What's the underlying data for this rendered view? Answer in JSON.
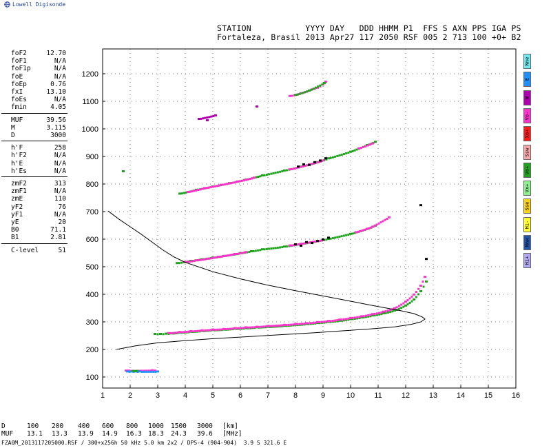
{
  "brand": {
    "name": "Lowell Digisonde",
    "logo_icon": "globe-icon"
  },
  "station": {
    "header_line": "STATION           YYYY DAY   DDD HHMM P1  FFS S AXN PPS IGA PS",
    "value_line": "Fortaleza, Brasil 2013 Apr27 117 2050 RSF 005 2 713 100 +0+ B2"
  },
  "param_groups": [
    [
      {
        "label": "foF2",
        "value": "12.70"
      },
      {
        "label": "foF1",
        "value": "N/A"
      },
      {
        "label": "foF1p",
        "value": "N/A"
      },
      {
        "label": "foE",
        "value": "N/A"
      },
      {
        "label": "foEp",
        "value": "0.76"
      },
      {
        "label": "fxI",
        "value": "13.10"
      },
      {
        "label": "foEs",
        "value": "N/A"
      },
      {
        "label": "fmin",
        "value": "4.05"
      }
    ],
    [
      {
        "label": "MUF",
        "value": "39.56"
      },
      {
        "label": "M",
        "value": "3.115"
      },
      {
        "label": "D",
        "value": "3000"
      }
    ],
    [
      {
        "label": "h'F",
        "value": "258"
      },
      {
        "label": "h'F2",
        "value": "N/A"
      },
      {
        "label": "h'E",
        "value": "N/A"
      },
      {
        "label": "h'Es",
        "value": "N/A"
      }
    ],
    [
      {
        "label": "zmF2",
        "value": "313"
      },
      {
        "label": "zmF1",
        "value": "N/A"
      },
      {
        "label": "zmE",
        "value": "110"
      },
      {
        "label": "yF2",
        "value": "76"
      },
      {
        "label": "yF1",
        "value": "N/A"
      },
      {
        "label": "yE",
        "value": "20"
      },
      {
        "label": "B0",
        "value": "71.1"
      },
      {
        "label": "B1",
        "value": "2.81"
      }
    ],
    [
      {
        "label": "C-level",
        "value": "51"
      }
    ]
  ],
  "legend": [
    {
      "label": "Nne",
      "color": "#6fe9f0"
    },
    {
      "label": "E",
      "color": "#1e90ff"
    },
    {
      "label": "W",
      "color": "#b000b0"
    },
    {
      "label": "Vo-",
      "color": "#ff33cc"
    },
    {
      "label": "Xo+",
      "color": "#ff1a1a"
    },
    {
      "label": "Ssw",
      "color": "#f7a8a8"
    },
    {
      "label": "Vo+",
      "color": "#1fa31f"
    },
    {
      "label": "Vx+",
      "color": "#8ff08f"
    },
    {
      "label": "Sse",
      "color": "#ffd21a"
    },
    {
      "label": "Hi-",
      "color": "#ffff33"
    },
    {
      "label": "Nnw",
      "color": "#2255aa"
    },
    {
      "label": "Hi+",
      "color": "#b0a8f0"
    }
  ],
  "chart_data": {
    "type": "scatter",
    "title": "",
    "xlabel": "",
    "ylabel": "",
    "xlim": [
      1,
      16
    ],
    "ylim": [
      60,
      1290
    ],
    "x_ticks": [
      1,
      2,
      3,
      4,
      5,
      6,
      7,
      8,
      9,
      10,
      11,
      12,
      13,
      14,
      15,
      16
    ],
    "y_ticks": [
      100,
      200,
      300,
      400,
      500,
      600,
      700,
      800,
      900,
      1000,
      1100,
      1200
    ],
    "grid": true,
    "traces": [
      {
        "name": "",
        "color": "#1fa31f",
        "points": [
          [
            2.9,
            255
          ],
          [
            3.1,
            255
          ],
          [
            3.3,
            256
          ],
          [
            3.5,
            257
          ],
          [
            3.8,
            260
          ],
          [
            4.2,
            263
          ],
          [
            4.6,
            266
          ],
          [
            5.0,
            269
          ],
          [
            5.4,
            271
          ],
          [
            5.8,
            274
          ],
          [
            6.2,
            276
          ],
          [
            6.6,
            279
          ],
          [
            7.0,
            281
          ],
          [
            7.6,
            285
          ],
          [
            8.0,
            288
          ],
          [
            8.4,
            291
          ],
          [
            8.8,
            295
          ],
          [
            9.2,
            299
          ],
          [
            9.6,
            303
          ],
          [
            10.0,
            309
          ],
          [
            10.4,
            315
          ],
          [
            10.8,
            322
          ],
          [
            11.2,
            330
          ],
          [
            11.6,
            340
          ],
          [
            12.0,
            358
          ],
          [
            12.3,
            380
          ],
          [
            12.55,
            410
          ],
          [
            12.75,
            445
          ]
        ]
      },
      {
        "name": "",
        "color": "#ff33cc",
        "points": [
          [
            3.4,
            258
          ],
          [
            3.8,
            262
          ],
          [
            4.2,
            265
          ],
          [
            4.6,
            268
          ],
          [
            5.0,
            271
          ],
          [
            5.4,
            273
          ],
          [
            5.8,
            276
          ],
          [
            6.2,
            279
          ],
          [
            6.6,
            281
          ],
          [
            7.0,
            284
          ],
          [
            7.6,
            288
          ],
          [
            8.0,
            291
          ],
          [
            8.4,
            294
          ],
          [
            8.8,
            298
          ],
          [
            9.2,
            302
          ],
          [
            9.6,
            307
          ],
          [
            10.0,
            313
          ],
          [
            10.4,
            319
          ],
          [
            10.8,
            327
          ],
          [
            11.2,
            336
          ],
          [
            11.6,
            348
          ],
          [
            12.0,
            372
          ],
          [
            12.3,
            398
          ],
          [
            12.55,
            430
          ],
          [
            12.7,
            462
          ]
        ]
      },
      {
        "name": "",
        "color": "#1fa31f",
        "points": [
          [
            3.7,
            512
          ],
          [
            4.2,
            520
          ],
          [
            4.6,
            526
          ],
          [
            5.0,
            532
          ],
          [
            5.4,
            538
          ],
          [
            6.0,
            548
          ],
          [
            6.4,
            555
          ],
          [
            6.8,
            562
          ],
          [
            7.6,
            572
          ],
          [
            8.2,
            582
          ],
          [
            8.8,
            592
          ],
          [
            9.2,
            600
          ],
          [
            10.0,
            618
          ],
          [
            10.6,
            636
          ],
          [
            10.9,
            648
          ]
        ]
      },
      {
        "name": "",
        "color": "#ff33cc",
        "points": [
          [
            4.0,
            516
          ],
          [
            4.4,
            522
          ],
          [
            4.8,
            528
          ],
          [
            5.2,
            535
          ],
          [
            5.8,
            545
          ],
          [
            6.2,
            552
          ],
          [
            7.8,
            576
          ],
          [
            8.4,
            586
          ],
          [
            9.0,
            596
          ],
          [
            10.2,
            624
          ],
          [
            10.8,
            644
          ],
          [
            11.4,
            678
          ]
        ]
      },
      {
        "name": "",
        "color": "#1fa31f",
        "points": [
          [
            3.8,
            764
          ],
          [
            4.4,
            778
          ],
          [
            5.0,
            790
          ],
          [
            5.6,
            802
          ],
          [
            6.2,
            815
          ],
          [
            6.8,
            830
          ],
          [
            7.6,
            848
          ],
          [
            8.2,
            862
          ],
          [
            8.8,
            878
          ],
          [
            9.2,
            892
          ],
          [
            10.0,
            916
          ],
          [
            10.6,
            940
          ],
          [
            10.9,
            952
          ]
        ]
      },
      {
        "name": "",
        "color": "#ff33cc",
        "points": [
          [
            4.1,
            770
          ],
          [
            4.7,
            784
          ],
          [
            5.3,
            796
          ],
          [
            5.9,
            808
          ],
          [
            6.5,
            822
          ],
          [
            7.8,
            852
          ],
          [
            8.5,
            870
          ],
          [
            9.0,
            884
          ],
          [
            10.3,
            928
          ],
          [
            10.8,
            946
          ]
        ]
      },
      {
        "name": "",
        "color": "#ff33cc",
        "points": [
          [
            7.8,
            1118
          ],
          [
            8.2,
            1128
          ],
          [
            8.6,
            1142
          ],
          [
            8.8,
            1148
          ],
          [
            9.0,
            1160
          ],
          [
            9.1,
            1170
          ]
        ]
      },
      {
        "name": "",
        "color": "#1fa31f",
        "points": [
          [
            8.0,
            1122
          ],
          [
            8.5,
            1138
          ],
          [
            9.05,
            1165
          ]
        ]
      },
      {
        "name": "",
        "color": "#000000",
        "points": [
          [
            8.0,
            580
          ],
          [
            8.2,
            575
          ],
          [
            8.4,
            588
          ],
          [
            8.6,
            585
          ],
          [
            8.8,
            592
          ],
          [
            9.0,
            598
          ],
          [
            9.2,
            604
          ],
          [
            8.1,
            862
          ],
          [
            8.3,
            870
          ],
          [
            8.5,
            868
          ],
          [
            8.7,
            878
          ],
          [
            8.9,
            884
          ],
          [
            9.1,
            892
          ]
        ]
      },
      {
        "name": "",
        "color": "#ff33cc",
        "points": [
          [
            1.85,
            122
          ],
          [
            1.95,
            122
          ],
          [
            2.8,
            123
          ],
          [
            2.9,
            122
          ]
        ]
      },
      {
        "name": "",
        "color": "#1e90ff",
        "points": [
          [
            1.9,
            119
          ],
          [
            2.05,
            119
          ],
          [
            2.2,
            119
          ],
          [
            2.35,
            119
          ],
          [
            3.0,
            119
          ]
        ]
      },
      {
        "name": "",
        "color": "#1fa31f",
        "points": [
          [
            2.1,
            121
          ],
          [
            2.25,
            121
          ],
          [
            1.75,
            845
          ]
        ]
      },
      {
        "name": "",
        "color": "#b000b0",
        "points": [
          [
            4.5,
            1035
          ],
          [
            5.1,
            1048
          ],
          [
            6.6,
            1080
          ],
          [
            4.8,
            1030
          ]
        ]
      },
      {
        "name": "",
        "color": "#000000",
        "points": [
          [
            12.55,
            722
          ],
          [
            12.75,
            527
          ]
        ]
      }
    ],
    "profile": {
      "name": "",
      "color": "#000000",
      "points": [
        [
          1.2,
          702
        ],
        [
          1.6,
          672
        ],
        [
          2.0,
          645
        ],
        [
          2.4,
          618
        ],
        [
          2.8,
          589
        ],
        [
          3.2,
          560
        ],
        [
          3.6,
          535
        ],
        [
          4.0,
          516
        ],
        [
          5.0,
          482
        ],
        [
          6.0,
          456
        ],
        [
          7.0,
          433
        ],
        [
          8.0,
          413
        ],
        [
          9.0,
          394
        ],
        [
          10.0,
          375
        ],
        [
          10.6,
          363
        ],
        [
          11.2,
          352
        ],
        [
          11.8,
          341
        ],
        [
          12.3,
          330
        ],
        [
          12.6,
          318
        ],
        [
          12.7,
          310
        ],
        [
          12.55,
          300
        ],
        [
          12.2,
          291
        ],
        [
          11.6,
          282
        ],
        [
          10.8,
          275
        ],
        [
          9.8,
          268
        ],
        [
          8.6,
          260
        ],
        [
          7.4,
          253
        ],
        [
          6.2,
          246
        ],
        [
          5.0,
          239
        ],
        [
          4.0,
          232
        ],
        [
          3.0,
          224
        ],
        [
          2.2,
          213
        ],
        [
          1.5,
          200
        ]
      ]
    }
  },
  "footer": {
    "labels": [
      "D",
      "MUF"
    ],
    "d_values": [
      "100",
      "200",
      "400",
      "600",
      "800",
      "1000",
      "1500",
      "3000"
    ],
    "muf_values": [
      "13.1",
      "13.3",
      "13.9",
      "14.9",
      "16.3",
      "18.3",
      "24.3",
      "39.6"
    ],
    "d_unit": "[km]",
    "muf_unit": "[MHz]",
    "file_info": "FZA0M_2013117205000.RSF / 300+x256h 50 kHz 5.0 km 2x2 / DPS-4 (904-904)  3.9 S 321.6 E"
  }
}
